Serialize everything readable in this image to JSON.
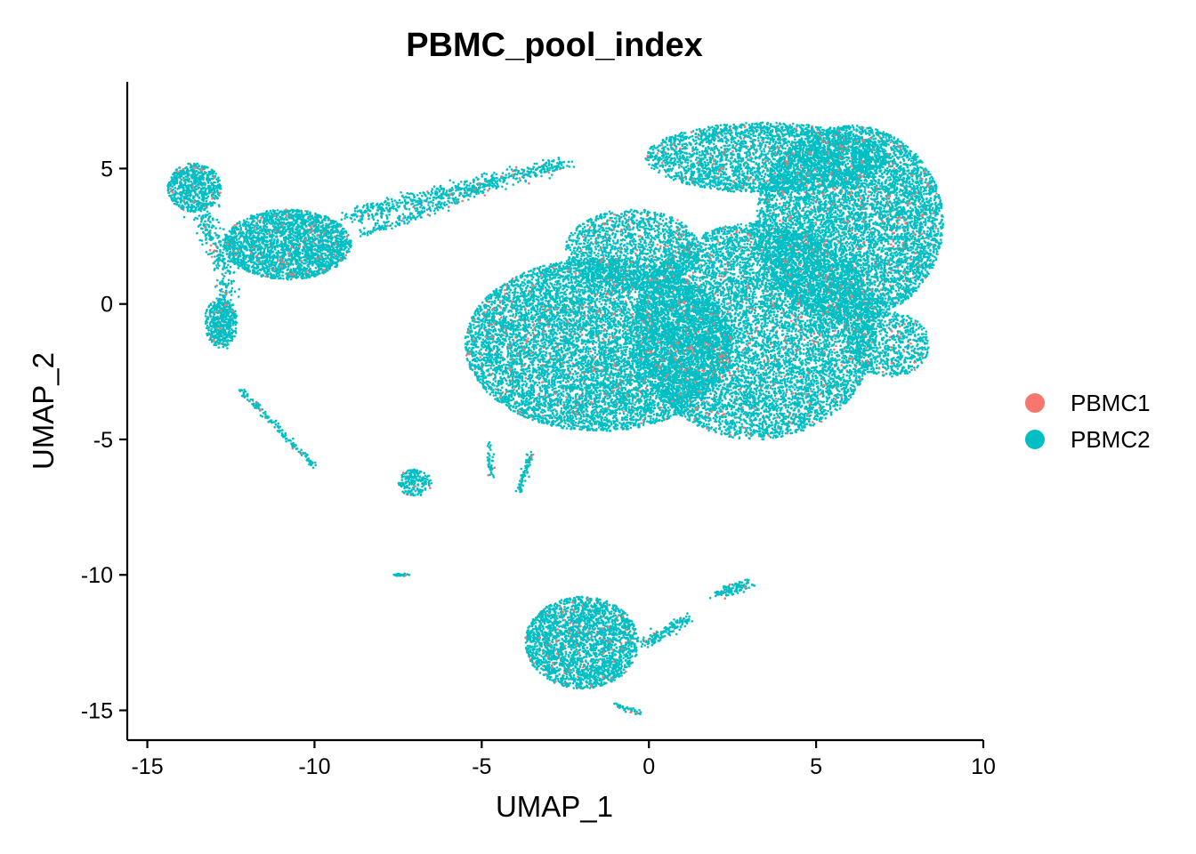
{
  "chart_data": {
    "type": "scatter",
    "title": "PBMC_pool_index",
    "xlabel": "UMAP_1",
    "ylabel": "UMAP_2",
    "xlim": [
      -15.6,
      10.0
    ],
    "ylim": [
      -16.1,
      8.2
    ],
    "x_ticks": [
      -15,
      -10,
      -5,
      0,
      5,
      10
    ],
    "x_tick_labels": [
      "-15",
      "-10",
      "-5",
      "0",
      "5",
      "10"
    ],
    "y_ticks": [
      -15,
      -10,
      -5,
      0,
      5
    ],
    "y_tick_labels": [
      "-15",
      "-10",
      "-5",
      "0",
      "5"
    ],
    "grid": false,
    "legend_placement": "right",
    "series": [
      {
        "name": "PBMC1",
        "color": "#F8766D"
      },
      {
        "name": "PBMC2",
        "color": "#00BFC4"
      }
    ],
    "clusters": [
      {
        "shape": "ellipse",
        "center": [
          3.2,
          -1.0
        ],
        "radii": [
          3.6,
          4.0
        ],
        "angle": 0,
        "n": 9000
      },
      {
        "shape": "ellipse",
        "center": [
          6.0,
          3.0
        ],
        "radii": [
          2.8,
          3.6
        ],
        "angle": 0,
        "n": 7000
      },
      {
        "shape": "ellipse",
        "center": [
          -1.5,
          -1.5
        ],
        "radii": [
          4.0,
          3.2
        ],
        "angle": 0,
        "n": 9000
      },
      {
        "shape": "ellipse",
        "center": [
          3.5,
          5.4
        ],
        "radii": [
          3.6,
          1.3
        ],
        "angle": 0,
        "n": 3000
      },
      {
        "shape": "ellipse",
        "center": [
          -0.5,
          2.0
        ],
        "radii": [
          2.0,
          1.5
        ],
        "angle": 0,
        "n": 1500
      },
      {
        "shape": "ellipse",
        "center": [
          7.2,
          -1.5
        ],
        "radii": [
          1.2,
          1.2
        ],
        "angle": 0,
        "n": 700
      },
      {
        "shape": "ellipse",
        "center": [
          -10.8,
          2.2
        ],
        "radii": [
          1.9,
          1.3
        ],
        "angle": 0,
        "n": 2500
      },
      {
        "shape": "ellipse",
        "center": [
          -13.6,
          4.3
        ],
        "radii": [
          0.8,
          0.9
        ],
        "angle": 0,
        "n": 700
      },
      {
        "shape": "ellipse",
        "center": [
          -12.8,
          -0.7
        ],
        "radii": [
          0.5,
          0.9
        ],
        "angle": 0,
        "n": 400
      },
      {
        "shape": "ellipse",
        "center": [
          -2.0,
          -12.5
        ],
        "radii": [
          1.7,
          1.7
        ],
        "angle": 0,
        "n": 2500
      },
      {
        "shape": "ellipse",
        "center": [
          -7.0,
          -6.6
        ],
        "radii": [
          0.5,
          0.5
        ],
        "angle": 0,
        "n": 200
      },
      {
        "shape": "line",
        "from": [
          -13.4,
          3.4
        ],
        "to": [
          -12.6,
          1.2
        ],
        "width": 0.4,
        "n": 200
      },
      {
        "shape": "line",
        "from": [
          -12.6,
          1.0
        ],
        "to": [
          -12.9,
          -1.5
        ],
        "width": 0.3,
        "n": 150
      },
      {
        "shape": "line",
        "from": [
          -9.0,
          3.2
        ],
        "to": [
          -2.5,
          5.2
        ],
        "width": 0.3,
        "n": 600
      },
      {
        "shape": "line",
        "from": [
          -8.5,
          2.6
        ],
        "to": [
          -4.8,
          4.3
        ],
        "width": 0.2,
        "n": 200
      },
      {
        "shape": "line",
        "from": [
          -12.2,
          -3.2
        ],
        "to": [
          -10.0,
          -6.0
        ],
        "width": 0.1,
        "n": 150
      },
      {
        "shape": "line",
        "from": [
          -4.8,
          -5.0
        ],
        "to": [
          -4.7,
          -6.4
        ],
        "width": 0.1,
        "n": 40
      },
      {
        "shape": "line",
        "from": [
          -3.5,
          -5.5
        ],
        "to": [
          -3.9,
          -6.9
        ],
        "width": 0.1,
        "n": 80
      },
      {
        "shape": "line",
        "from": [
          -7.6,
          -10.0
        ],
        "to": [
          -7.2,
          -10.0
        ],
        "width": 0.05,
        "n": 40
      },
      {
        "shape": "line",
        "from": [
          -0.2,
          -12.6
        ],
        "to": [
          1.2,
          -11.6
        ],
        "width": 0.2,
        "n": 150
      },
      {
        "shape": "line",
        "from": [
          2.0,
          -10.7
        ],
        "to": [
          3.0,
          -10.3
        ],
        "width": 0.2,
        "n": 120
      },
      {
        "shape": "line",
        "from": [
          -1.0,
          -14.8
        ],
        "to": [
          -0.3,
          -15.1
        ],
        "width": 0.1,
        "n": 40
      }
    ]
  }
}
